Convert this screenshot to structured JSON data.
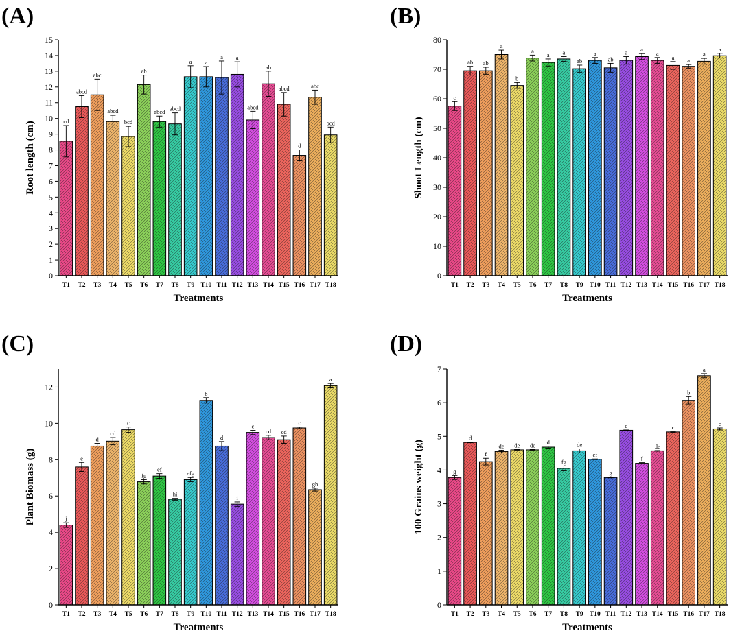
{
  "chart_data": [
    {
      "panel": "(A)",
      "type": "bar",
      "xlabel": "Treatments",
      "ylabel": "Root length (cm)",
      "ylim": [
        0,
        15
      ],
      "yticks": [
        0,
        1,
        2,
        3,
        4,
        5,
        6,
        7,
        8,
        9,
        10,
        11,
        12,
        13,
        14,
        15
      ],
      "categories": [
        "T1",
        "T2",
        "T3",
        "T4",
        "T5",
        "T6",
        "T7",
        "T8",
        "T9",
        "T10",
        "T11",
        "T12",
        "T13",
        "T14",
        "T15",
        "T16",
        "T17",
        "T18"
      ],
      "values": [
        8.55,
        10.75,
        11.5,
        9.8,
        8.85,
        12.15,
        9.8,
        9.65,
        12.65,
        12.65,
        12.6,
        12.8,
        9.9,
        12.2,
        10.9,
        7.65,
        11.35,
        8.95
      ],
      "errors": [
        1.0,
        0.7,
        1.0,
        0.4,
        0.65,
        0.6,
        0.35,
        0.7,
        0.7,
        0.65,
        1.05,
        0.8,
        0.55,
        0.8,
        0.75,
        0.35,
        0.45,
        0.5
      ],
      "letters": [
        "cd",
        "abcd",
        "abc",
        "abcd",
        "bcd",
        "ab",
        "abcd",
        "abcd",
        "a",
        "a",
        "a",
        "a",
        "abcd",
        "ab",
        "abcd",
        "d",
        "abc",
        "bcd"
      ]
    },
    {
      "panel": "(B)",
      "type": "bar",
      "xlabel": "Treatments",
      "ylabel": "Shoot Length (cm)",
      "ylim": [
        0,
        80
      ],
      "yticks": [
        0,
        10,
        20,
        30,
        40,
        50,
        60,
        70,
        80
      ],
      "categories": [
        "T1",
        "T2",
        "T3",
        "T4",
        "T5",
        "T6",
        "T7",
        "T8",
        "T9",
        "T10",
        "T11",
        "T12",
        "T13",
        "T14",
        "T15",
        "T16",
        "T17",
        "T18"
      ],
      "values": [
        57.5,
        69.5,
        69.5,
        75,
        64.5,
        73.8,
        72.3,
        73.5,
        70.2,
        73,
        70.5,
        73,
        74.3,
        73,
        71.3,
        71,
        72.7,
        74.6
      ],
      "errors": [
        1.5,
        1.5,
        1.2,
        1.5,
        1.0,
        1.0,
        1.2,
        0.8,
        1.2,
        1.0,
        1.5,
        1.3,
        1.0,
        1.0,
        1.3,
        0.6,
        1.0,
        0.8
      ],
      "letters": [
        "c",
        "ab",
        "ab",
        "a",
        "b",
        "a",
        "a",
        "a",
        "ab",
        "a",
        "ab",
        "a",
        "a",
        "a",
        "a",
        "a",
        "a",
        "a"
      ]
    },
    {
      "panel": "(C)",
      "type": "bar",
      "xlabel": "Treatments",
      "ylabel": "Plant Biomass (g)",
      "ylim": [
        0,
        13
      ],
      "yticks": [
        0,
        2,
        4,
        6,
        8,
        10,
        12
      ],
      "categories": [
        "T1",
        "T2",
        "T3",
        "T4",
        "T5",
        "T6",
        "T7",
        "T8",
        "T9",
        "T10",
        "T11",
        "T12",
        "T13",
        "T14",
        "T15",
        "T16",
        "T17",
        "T18"
      ],
      "values": [
        4.4,
        7.6,
        8.75,
        9.02,
        9.65,
        6.78,
        7.1,
        5.82,
        6.9,
        11.27,
        8.75,
        5.55,
        9.5,
        9.22,
        9.1,
        9.75,
        6.35,
        12.08
      ],
      "errors": [
        0.13,
        0.25,
        0.15,
        0.2,
        0.15,
        0.12,
        0.13,
        0.05,
        0.12,
        0.15,
        0.25,
        0.12,
        0.12,
        0.12,
        0.2,
        0.05,
        0.08,
        0.12
      ],
      "letters": [
        "j",
        "e",
        "d",
        "cd",
        "c",
        "fg",
        "ef",
        "hi",
        "efg",
        "b",
        "d",
        "i",
        "c",
        "cd",
        "cd",
        "c",
        "gh",
        "a"
      ]
    },
    {
      "panel": "(D)",
      "type": "bar",
      "xlabel": "Treatments",
      "ylabel": "100 Grains weight (g)",
      "ylim": [
        0,
        7
      ],
      "yticks": [
        0,
        1,
        2,
        3,
        4,
        5,
        6,
        7
      ],
      "categories": [
        "T1",
        "T2",
        "T3",
        "T4",
        "T5",
        "T6",
        "T7",
        "T8",
        "T9",
        "T10",
        "T11",
        "T12",
        "T13",
        "T14",
        "T15",
        "T16",
        "T17",
        "T18"
      ],
      "values": [
        3.78,
        4.82,
        4.25,
        4.55,
        4.6,
        4.6,
        4.68,
        4.05,
        4.57,
        4.32,
        3.78,
        5.18,
        4.2,
        4.57,
        5.13,
        6.07,
        6.8,
        5.22
      ],
      "errors": [
        0.06,
        0.01,
        0.1,
        0.04,
        0.01,
        0.01,
        0.03,
        0.07,
        0.06,
        0.01,
        0.01,
        0.01,
        0.02,
        0.01,
        0.02,
        0.11,
        0.06,
        0.03
      ],
      "letters": [
        "g",
        "d",
        "f",
        "de",
        "de",
        "de",
        "d",
        "fg",
        "de",
        "ef",
        "g",
        "c",
        "f",
        "de",
        "c",
        "b",
        "a",
        "c"
      ]
    }
  ],
  "palette": [
    "#ef4a8b",
    "#f05b5b",
    "#f6a25e",
    "#f4b96d",
    "#f3e06a",
    "#8fd65c",
    "#2fcc45",
    "#37d0a6",
    "#37cfd2",
    "#2f9be3",
    "#4a6fe0",
    "#9b4ee8",
    "#d94fe6",
    "#ec4d97",
    "#f3675f",
    "#f39563",
    "#f2b25e",
    "#f0e06a"
  ]
}
